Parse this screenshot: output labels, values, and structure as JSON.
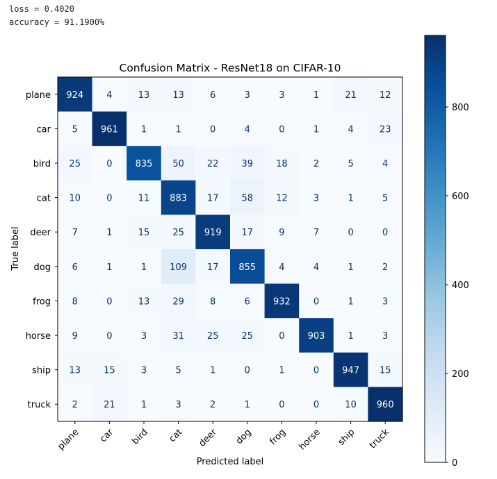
{
  "metrics": {
    "loss": "loss = 0.4020",
    "accuracy": "accuracy = 91.1900%"
  },
  "chart_data": {
    "type": "heatmap",
    "title": "Confusion Matrix - ResNet18 on CIFAR-10",
    "xlabel": "Predicted label",
    "ylabel": "True label",
    "categories": [
      "plane",
      "car",
      "bird",
      "cat",
      "deer",
      "dog",
      "frog",
      "horse",
      "ship",
      "truck"
    ],
    "matrix": [
      [
        924,
        4,
        13,
        13,
        6,
        3,
        3,
        1,
        21,
        12
      ],
      [
        5,
        961,
        1,
        1,
        0,
        4,
        0,
        1,
        4,
        23
      ],
      [
        25,
        0,
        835,
        50,
        22,
        39,
        18,
        2,
        5,
        4
      ],
      [
        10,
        0,
        11,
        883,
        17,
        58,
        12,
        3,
        1,
        5
      ],
      [
        7,
        1,
        15,
        25,
        919,
        17,
        9,
        7,
        0,
        0
      ],
      [
        6,
        1,
        1,
        109,
        17,
        855,
        4,
        4,
        1,
        2
      ],
      [
        8,
        0,
        13,
        29,
        8,
        6,
        932,
        0,
        1,
        3
      ],
      [
        9,
        0,
        3,
        31,
        25,
        25,
        0,
        903,
        1,
        3
      ],
      [
        13,
        15,
        3,
        5,
        1,
        0,
        1,
        0,
        947,
        15
      ],
      [
        2,
        21,
        1,
        3,
        2,
        1,
        0,
        0,
        10,
        960
      ]
    ],
    "colormap": "Blues",
    "colormap_stops": [
      "#f7fbff",
      "#deebf7",
      "#c6dbef",
      "#9ecae1",
      "#6baed6",
      "#4292c6",
      "#2171b5",
      "#08519c",
      "#08306b"
    ],
    "vmin": 0,
    "vmax": 961,
    "colorbar_ticks": [
      0,
      200,
      400,
      600,
      800
    ],
    "text_light_color": "#ffffff",
    "text_dark_color": "#08306b"
  }
}
